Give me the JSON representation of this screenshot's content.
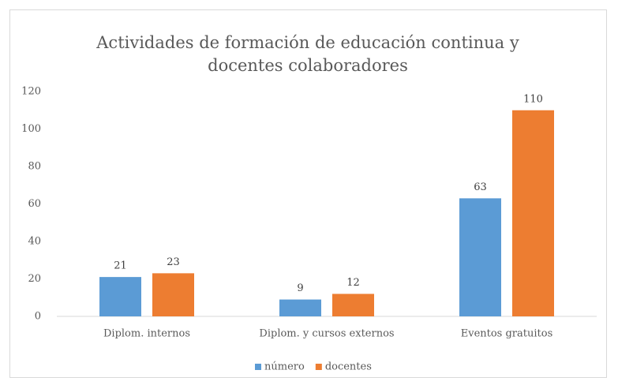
{
  "chart_data": {
    "type": "bar",
    "title": "Actividades de formación de educación continua y docentes colaboradores",
    "categories": [
      "Diplom. internos",
      "Diplom. y cursos externos",
      "Eventos gratuitos"
    ],
    "series": [
      {
        "name": "número",
        "color": "#5b9bd5",
        "values": [
          21,
          9,
          63
        ]
      },
      {
        "name": "docentes",
        "color": "#ed7d31",
        "values": [
          23,
          12,
          110
        ]
      }
    ],
    "ylim": [
      0,
      120
    ],
    "yticks": [
      0,
      20,
      40,
      60,
      80,
      100,
      120
    ],
    "grid": false,
    "legend": "bottom"
  }
}
